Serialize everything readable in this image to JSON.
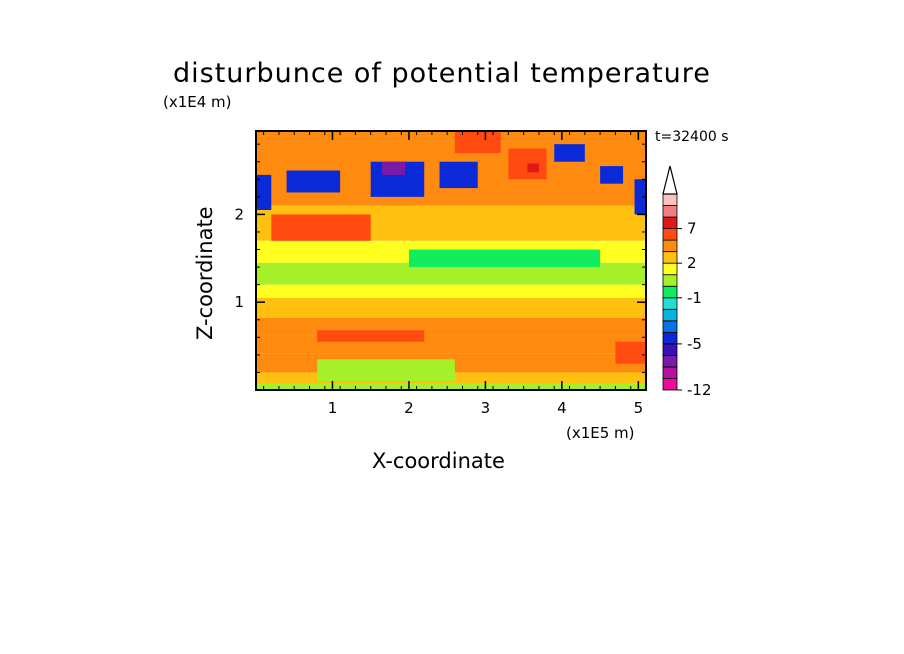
{
  "chart_data": {
    "type": "heatmap",
    "title": "disturbunce of potential temperature",
    "xlabel": "X-coordinate",
    "ylabel": "Z-coordinate",
    "x_unit": "(x1E5 m)",
    "y_unit": "(x1E4 m)",
    "time_label": "t=32400 s",
    "xlim": [
      0,
      5.1
    ],
    "ylim": [
      0,
      2.95
    ],
    "x_ticks": [
      "1",
      "2",
      "3",
      "4",
      "5"
    ],
    "x_tick_values": [
      1,
      2,
      3,
      4,
      5
    ],
    "y_ticks": [
      "1",
      "2"
    ],
    "y_tick_values": [
      1,
      2
    ],
    "colorbar": {
      "levels": [
        -12,
        -10,
        -8,
        -6,
        -5,
        -4,
        -3,
        -2,
        -1,
        0,
        1,
        2,
        3,
        5,
        7,
        9,
        11
      ],
      "labels": [
        "7",
        "2",
        "-1",
        "-5",
        "-12"
      ],
      "label_values": [
        7,
        2,
        -1,
        -5,
        -12
      ],
      "colors": [
        "#ee0a9a",
        "#b80fa0",
        "#7a1aa8",
        "#3a10b8",
        "#0a2ad8",
        "#0a72e8",
        "#0ab2e0",
        "#1ee0d0",
        "#10ee60",
        "#a6f02a",
        "#ffff20",
        "#ffc010",
        "#ff8a10",
        "#ff4a10",
        "#e01818",
        "#f08080",
        "#ffc0c0"
      ],
      "extend": "max"
    },
    "regions": [
      {
        "x": [
          0.0,
          5.1
        ],
        "z": [
          0.0,
          0.08
        ],
        "value": 0.5
      },
      {
        "x": [
          0.0,
          5.1
        ],
        "z": [
          0.08,
          0.2
        ],
        "value": 2.5
      },
      {
        "x": [
          0.0,
          5.1
        ],
        "z": [
          0.2,
          0.42
        ],
        "value": 3.5
      },
      {
        "x": [
          0.0,
          5.1
        ],
        "z": [
          0.42,
          0.62
        ],
        "value": 4.5
      },
      {
        "x": [
          0.0,
          5.1
        ],
        "z": [
          0.62,
          0.82
        ],
        "value": 3.5
      },
      {
        "x": [
          0.0,
          5.1
        ],
        "z": [
          0.82,
          1.05
        ],
        "value": 2.5
      },
      {
        "x": [
          0.0,
          5.1
        ],
        "z": [
          1.05,
          1.2
        ],
        "value": 1.5
      },
      {
        "x": [
          0.0,
          5.1
        ],
        "z": [
          1.2,
          1.45
        ],
        "value": 0.5
      },
      {
        "x": [
          0.0,
          5.1
        ],
        "z": [
          1.45,
          1.7
        ],
        "value": 1.5
      },
      {
        "x": [
          0.0,
          5.1
        ],
        "z": [
          1.7,
          2.1
        ],
        "value": 2.5
      },
      {
        "x": [
          0.0,
          5.1
        ],
        "z": [
          2.1,
          2.95
        ],
        "value": 3.5
      },
      {
        "x": [
          0.8,
          2.6
        ],
        "z": [
          0.1,
          0.35
        ],
        "value": 0.5
      },
      {
        "x": [
          0.8,
          2.2
        ],
        "z": [
          0.55,
          0.68
        ],
        "value": 5.5
      },
      {
        "x": [
          4.7,
          5.1
        ],
        "z": [
          0.3,
          0.55
        ],
        "value": 5.5
      },
      {
        "x": [
          0.0,
          0.2
        ],
        "z": [
          2.05,
          2.45
        ],
        "value": -4.5
      },
      {
        "x": [
          0.4,
          1.1
        ],
        "z": [
          2.25,
          2.5
        ],
        "value": -4.5
      },
      {
        "x": [
          1.5,
          2.2
        ],
        "z": [
          2.2,
          2.6
        ],
        "value": -4.5
      },
      {
        "x": [
          1.65,
          1.95
        ],
        "z": [
          2.45,
          2.6
        ],
        "value": -7.0
      },
      {
        "x": [
          2.4,
          2.9
        ],
        "z": [
          2.3,
          2.6
        ],
        "value": -4.5
      },
      {
        "x": [
          3.3,
          3.8
        ],
        "z": [
          2.4,
          2.75
        ],
        "value": 5.5
      },
      {
        "x": [
          3.55,
          3.7
        ],
        "z": [
          2.48,
          2.58
        ],
        "value": 8.0
      },
      {
        "x": [
          3.9,
          4.3
        ],
        "z": [
          2.6,
          2.8
        ],
        "value": -4.5
      },
      {
        "x": [
          4.5,
          4.8
        ],
        "z": [
          2.35,
          2.55
        ],
        "value": -4.5
      },
      {
        "x": [
          4.95,
          5.1
        ],
        "z": [
          2.0,
          2.4
        ],
        "value": -4.5
      },
      {
        "x": [
          2.0,
          4.5
        ],
        "z": [
          1.4,
          1.6
        ],
        "value": -0.5
      },
      {
        "x": [
          0.2,
          1.5
        ],
        "z": [
          1.7,
          2.0
        ],
        "value": 5.5
      },
      {
        "x": [
          2.6,
          3.2
        ],
        "z": [
          2.7,
          2.95
        ],
        "value": 5.5
      }
    ]
  }
}
